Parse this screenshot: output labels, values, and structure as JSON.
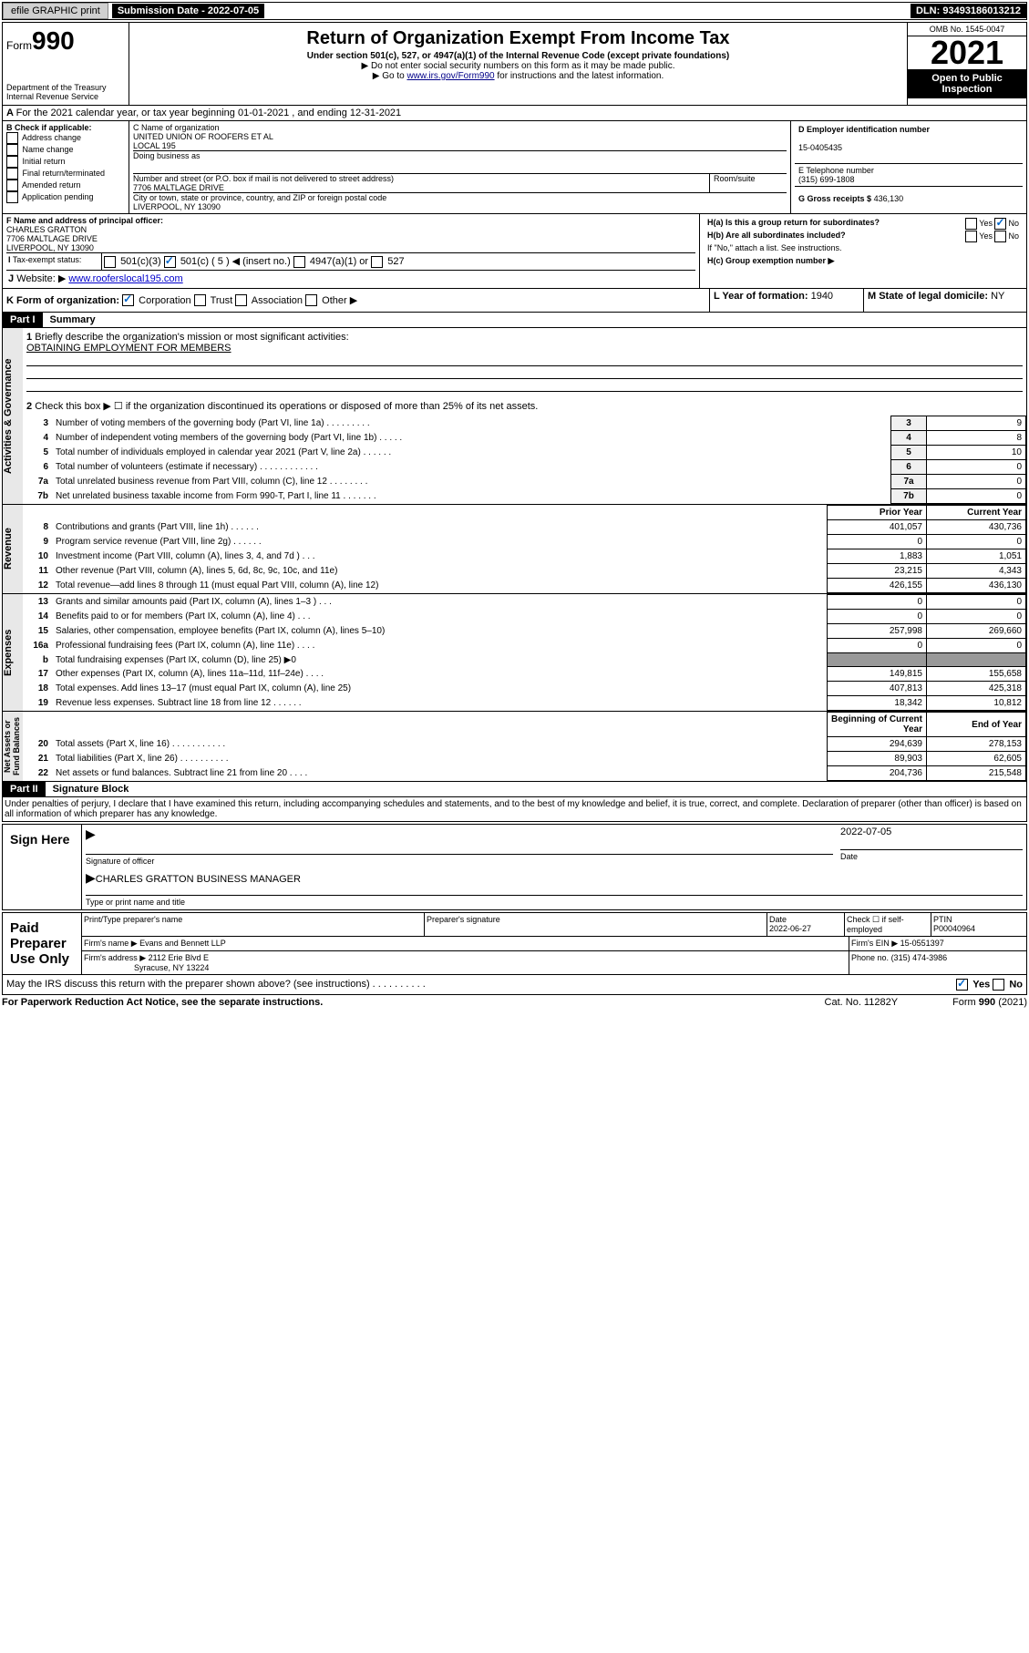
{
  "topbar": {
    "efile": "efile GRAPHIC print",
    "subdate_lbl": "Submission Date - 2022-07-05",
    "dln": "DLN: 93493186013212"
  },
  "header": {
    "form": "990",
    "form_prefix": "Form",
    "title": "Return of Organization Exempt From Income Tax",
    "sub": "Under section 501(c), 527, or 4947(a)(1) of the Internal Revenue Code (except private foundations)",
    "note1": "▶ Do not enter social security numbers on this form as it may be made public.",
    "note2": "▶ Go to www.irs.gov/Form990 for instructions and the latest information.",
    "note2_link": "www.irs.gov/Form990",
    "dept": "Department of the Treasury\nInternal Revenue Service",
    "omb": "OMB No. 1545-0047",
    "year": "2021",
    "inspect": "Open to Public Inspection"
  },
  "A": {
    "text": "For the 2021 calendar year, or tax year beginning 01-01-2021   , and ending 12-31-2021"
  },
  "B": {
    "label": "B Check if applicable:",
    "ops": [
      "Address change",
      "Name change",
      "Initial return",
      "Final return/terminated",
      "Amended return",
      "Application pending"
    ]
  },
  "C": {
    "name_lbl": "C Name of organization",
    "name": "UNITED UNION OF ROOFERS ET AL\nLOCAL 195",
    "dba_lbl": "Doing business as",
    "dba": "",
    "street_lbl": "Number and street (or P.O. box if mail is not delivered to street address)",
    "street": "7706 MALTLAGE DRIVE",
    "room_lbl": "Room/suite",
    "city_lbl": "City or town, state or province, country, and ZIP or foreign postal code",
    "city": "LIVERPOOL, NY  13090"
  },
  "D": {
    "lbl": "D Employer identification number",
    "val": "15-0405435"
  },
  "E": {
    "lbl": "E Telephone number",
    "val": "(315) 699-1808"
  },
  "G": {
    "lbl": "G Gross receipts $",
    "val": "436,130"
  },
  "F": {
    "lbl": "F  Name and address of principal officer:",
    "name": "CHARLES GRATTON",
    "addr1": "7706 MALTLAGE DRIVE",
    "addr2": "LIVERPOOL, NY  13090"
  },
  "H": {
    "a": "H(a)  Is this a group return for subordinates?",
    "a_yes": "Yes",
    "a_no": "No",
    "b": "H(b)  Are all subordinates included?",
    "b_note": "If \"No,\" attach a list. See instructions.",
    "c": "H(c)  Group exemption number ▶"
  },
  "I": {
    "lbl": "Tax-exempt status:",
    "ops": [
      "501(c)(3)",
      "501(c) ( 5 ) ◀ (insert no.)",
      "4947(a)(1) or",
      "527"
    ]
  },
  "J": {
    "lbl": "Website: ▶",
    "val": "www.rooferslocal195.com"
  },
  "K": {
    "lbl": "K Form of organization:",
    "ops": [
      "Corporation",
      "Trust",
      "Association",
      "Other ▶"
    ]
  },
  "L": {
    "lbl": "L Year of formation:",
    "val": "1940"
  },
  "M": {
    "lbl": "M State of legal domicile:",
    "val": "NY"
  },
  "partI": {
    "hdr": "Part I",
    "title": "Summary"
  },
  "summary": {
    "l1": "Briefly describe the organization's mission or most significant activities:",
    "l1_val": "OBTAINING EMPLOYMENT FOR MEMBERS",
    "l2": "Check this box ▶ ☐  if the organization discontinued its operations or disposed of more than 25% of its net assets.",
    "rows_gov": [
      {
        "n": "3",
        "d": "Number of voting members of the governing body (Part VI, line 1a)   .    .    .    .    .    .    .    .    .",
        "v": "9"
      },
      {
        "n": "4",
        "d": "Number of independent voting members of the governing body (Part VI, line 1b)    .    .    .    .    .",
        "v": "8"
      },
      {
        "n": "5",
        "d": "Total number of individuals employed in calendar year 2021 (Part V, line 2a)    .    .    .    .    .    .",
        "v": "10"
      },
      {
        "n": "6",
        "d": "Total number of volunteers (estimate if necessary)    .    .    .    .    .    .    .    .    .    .    .    .",
        "v": "0"
      },
      {
        "n": "7a",
        "d": "Total unrelated business revenue from Part VIII, column (C), line 12   .    .    .    .    .    .    .    .",
        "v": "0"
      },
      {
        "n": "7b",
        "d": "Net unrelated business taxable income from Form 990-T, Part I, line 11    .    .    .    .    .    .    .",
        "v": "0"
      }
    ],
    "col_prior": "Prior Year",
    "col_curr": "Current Year",
    "rows_rev": [
      {
        "n": "8",
        "d": "Contributions and grants (Part VIII, line 1h)    .    .    .    .    .    .",
        "p": "401,057",
        "c": "430,736"
      },
      {
        "n": "9",
        "d": "Program service revenue (Part VIII, line 2g)    .    .    .    .    .    .",
        "p": "0",
        "c": "0"
      },
      {
        "n": "10",
        "d": "Investment income (Part VIII, column (A), lines 3, 4, and 7d )    .    .    .",
        "p": "1,883",
        "c": "1,051"
      },
      {
        "n": "11",
        "d": "Other revenue (Part VIII, column (A), lines 5, 6d, 8c, 9c, 10c, and 11e)",
        "p": "23,215",
        "c": "4,343"
      },
      {
        "n": "12",
        "d": "Total revenue—add lines 8 through 11 (must equal Part VIII, column (A), line 12)",
        "p": "426,155",
        "c": "436,130"
      }
    ],
    "rows_exp": [
      {
        "n": "13",
        "d": "Grants and similar amounts paid (Part IX, column (A), lines 1–3 )    .    .    .",
        "p": "0",
        "c": "0"
      },
      {
        "n": "14",
        "d": "Benefits paid to or for members (Part IX, column (A), line 4)    .    .    .",
        "p": "0",
        "c": "0"
      },
      {
        "n": "15",
        "d": "Salaries, other compensation, employee benefits (Part IX, column (A), lines 5–10)",
        "p": "257,998",
        "c": "269,660"
      },
      {
        "n": "16a",
        "d": "Professional fundraising fees (Part IX, column (A), line 11e)    .    .    .    .",
        "p": "0",
        "c": "0"
      },
      {
        "n": "b",
        "d": "Total fundraising expenses (Part IX, column (D), line 25) ▶0",
        "p": "",
        "c": ""
      },
      {
        "n": "17",
        "d": "Other expenses (Part IX, column (A), lines 11a–11d, 11f–24e)   .    .    .    .",
        "p": "149,815",
        "c": "155,658"
      },
      {
        "n": "18",
        "d": "Total expenses. Add lines 13–17 (must equal Part IX, column (A), line 25)",
        "p": "407,813",
        "c": "425,318"
      },
      {
        "n": "19",
        "d": "Revenue less expenses. Subtract line 18 from line 12   .    .    .    .    .    .",
        "p": "18,342",
        "c": "10,812"
      }
    ],
    "col_beg": "Beginning of Current Year",
    "col_end": "End of Year",
    "rows_net": [
      {
        "n": "20",
        "d": "Total assets (Part X, line 16)    .    .    .    .    .    .    .    .    .    .    .",
        "p": "294,639",
        "c": "278,153"
      },
      {
        "n": "21",
        "d": "Total liabilities (Part X, line 26)    .    .    .    .    .    .    .    .    .    .",
        "p": "89,903",
        "c": "62,605"
      },
      {
        "n": "22",
        "d": "Net assets or fund balances. Subtract line 21 from line 20    .    .    .    .",
        "p": "204,736",
        "c": "215,548"
      }
    ],
    "side_gov": "Activities & Governance",
    "side_rev": "Revenue",
    "side_exp": "Expenses",
    "side_net": "Net Assets or\nFund Balances"
  },
  "partII": {
    "hdr": "Part II",
    "title": "Signature Block",
    "decl": "Under penalties of perjury, I declare that I have examined this return, including accompanying schedules and statements, and to the best of my knowledge and belief, it is true, correct, and complete. Declaration of preparer (other than officer) is based on all information of which preparer has any knowledge."
  },
  "sign": {
    "here": "Sign Here",
    "sig_lbl": "Signature of officer",
    "date_lbl": "Date",
    "date": "2022-07-05",
    "name": "CHARLES GRATTON  BUSINESS MANAGER",
    "name_lbl": "Type or print name and title"
  },
  "paid": {
    "title": "Paid Preparer Use Only",
    "col1": "Print/Type preparer's name",
    "col2": "Preparer's signature",
    "col3": "Date",
    "col3v": "2022-06-27",
    "col4": "Check ☐ if self-employed",
    "col5": "PTIN",
    "col5v": "P00040964",
    "firm_lbl": "Firm's name    ▶",
    "firm": "Evans and Bennett LLP",
    "ein_lbl": "Firm's EIN ▶",
    "ein": "15-0551397",
    "addr_lbl": "Firm's address ▶",
    "addr1": "2112 Erie Blvd E",
    "addr2": "Syracuse, NY  13224",
    "phone_lbl": "Phone no.",
    "phone": "(315) 474-3986"
  },
  "footer": {
    "q": "May the IRS discuss this return with the preparer shown above? (see instructions)    .    .    .    .    .    .    .    .    .    .",
    "yes": "Yes",
    "no": "No",
    "pra": "For Paperwork Reduction Act Notice, see the separate instructions.",
    "cat": "Cat. No. 11282Y",
    "form": "Form 990 (2021)"
  }
}
